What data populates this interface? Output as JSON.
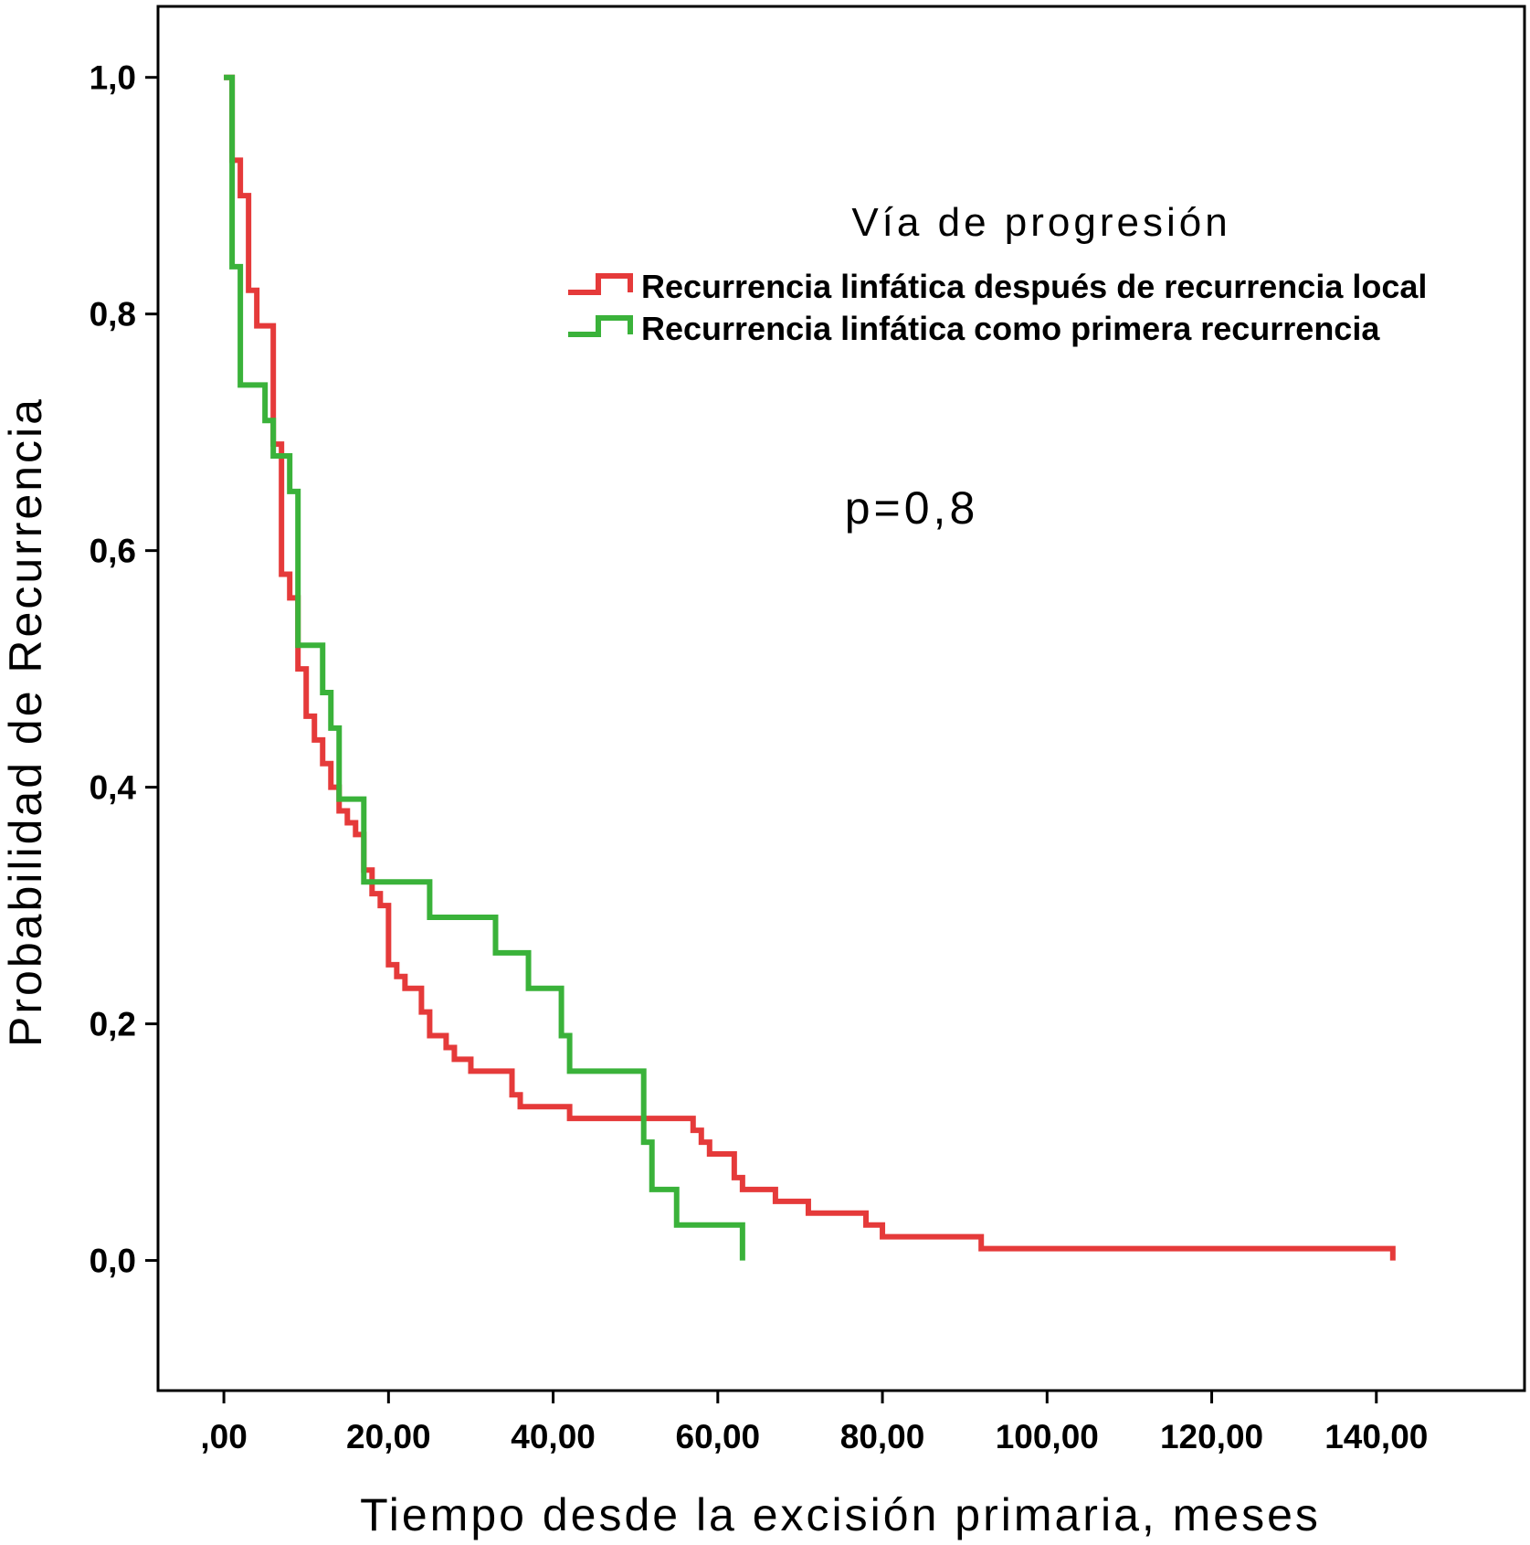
{
  "chart_data": {
    "type": "line",
    "subtype": "kaplan-meier-step",
    "xlabel": "Tiempo desde la excisión primaria, meses",
    "ylabel": "Probabilidad de Recurrencia",
    "xlim": [
      -8,
      158
    ],
    "ylim": [
      -0.11,
      1.06
    ],
    "xticks": [
      0,
      20,
      40,
      60,
      80,
      100,
      120,
      140
    ],
    "xtick_labels": [
      ",00",
      "20,00",
      "40,00",
      "60,00",
      "80,00",
      "100,00",
      "120,00",
      "140,00"
    ],
    "yticks": [
      0,
      0.2,
      0.4,
      0.6,
      0.8,
      1.0
    ],
    "ytick_labels": [
      "0,0",
      "0,2",
      "0,4",
      "0,6",
      "0,8",
      "1,0"
    ],
    "grid": false,
    "legend": {
      "title": "Vía de progresión",
      "placement": "top-right"
    },
    "annotation": "p=0,8",
    "series": [
      {
        "name": "Recurrencia linfática después de recurrencia local",
        "color": "#e53a3a",
        "x": [
          0,
          1,
          2,
          3,
          4,
          6,
          7,
          8,
          9,
          10,
          11,
          12,
          13,
          14,
          15,
          16,
          17,
          18,
          19,
          20,
          21,
          22,
          24,
          25,
          27,
          28,
          30,
          35,
          36,
          42,
          57,
          58,
          59,
          62,
          63,
          67,
          71,
          78,
          80,
          90,
          92,
          142
        ],
        "y": [
          1.0,
          0.93,
          0.9,
          0.82,
          0.79,
          0.69,
          0.58,
          0.56,
          0.5,
          0.46,
          0.44,
          0.42,
          0.4,
          0.38,
          0.37,
          0.36,
          0.33,
          0.31,
          0.3,
          0.25,
          0.24,
          0.23,
          0.21,
          0.19,
          0.18,
          0.17,
          0.16,
          0.14,
          0.13,
          0.12,
          0.11,
          0.1,
          0.09,
          0.07,
          0.06,
          0.05,
          0.04,
          0.03,
          0.02,
          0.02,
          0.01,
          0.0
        ]
      },
      {
        "name": "Recurrencia linfática como primera recurrencia",
        "color": "#3ab23a",
        "x": [
          0,
          1,
          2,
          5,
          6,
          8,
          9,
          12,
          13,
          14,
          17,
          25,
          33,
          37,
          41,
          42,
          51,
          52,
          55,
          63
        ],
        "y": [
          1.0,
          0.84,
          0.74,
          0.71,
          0.68,
          0.65,
          0.52,
          0.48,
          0.45,
          0.39,
          0.32,
          0.29,
          0.26,
          0.23,
          0.19,
          0.16,
          0.1,
          0.06,
          0.03,
          0.0
        ]
      }
    ]
  }
}
